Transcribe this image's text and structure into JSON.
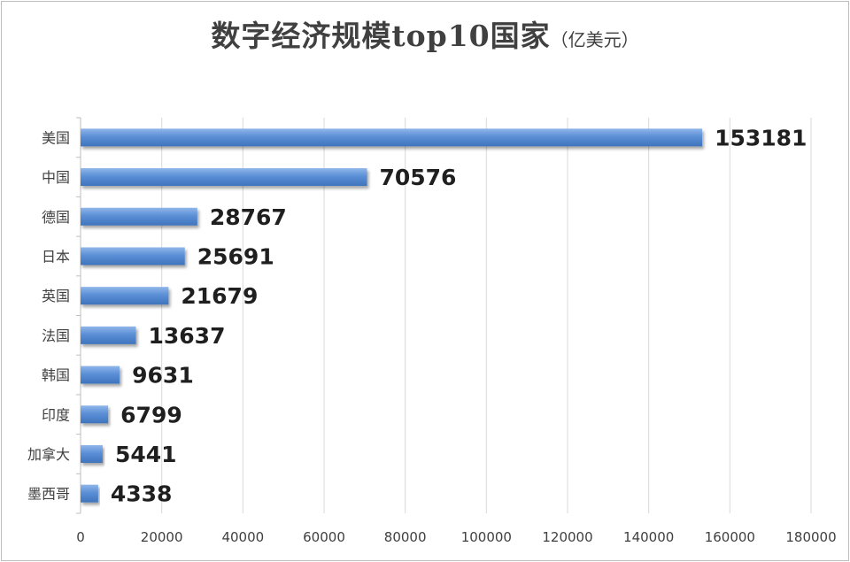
{
  "chart_data": {
    "type": "bar",
    "orientation": "horizontal",
    "title": "数字经济规模top10国家",
    "title_unit": "（亿美元）",
    "categories": [
      "美国",
      "中国",
      "德国",
      "日本",
      "英国",
      "法国",
      "韩国",
      "印度",
      "加拿大",
      "墨西哥"
    ],
    "values": [
      153181,
      70576,
      28767,
      25691,
      21679,
      13637,
      9631,
      6799,
      5441,
      4338
    ],
    "xlim": [
      0,
      180000
    ],
    "xticks": [
      0,
      20000,
      40000,
      60000,
      80000,
      100000,
      120000,
      140000,
      160000,
      180000
    ],
    "grid": "vertical",
    "bar_color": "#5b8fd6",
    "data_labels": true
  }
}
